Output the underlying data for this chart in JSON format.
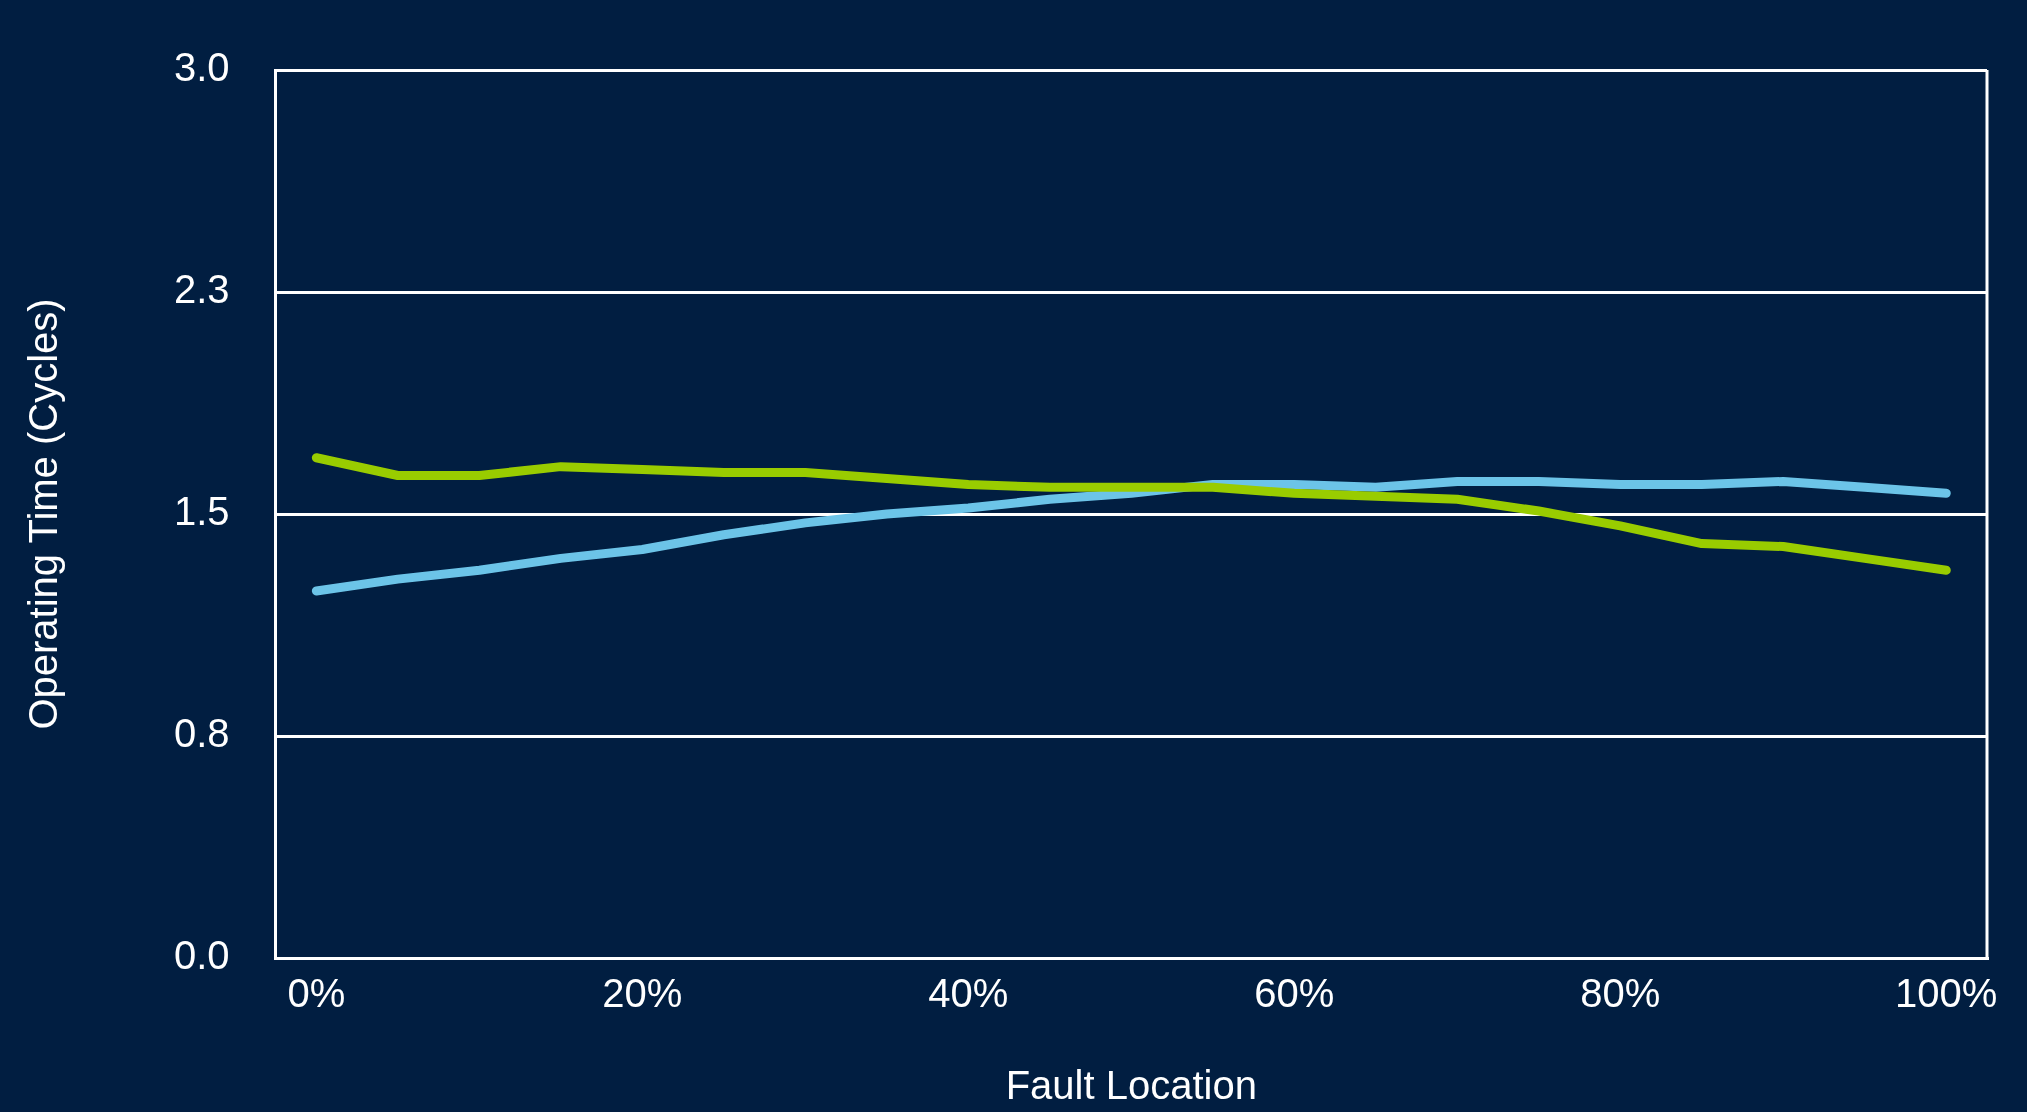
{
  "chart_data": {
    "type": "line",
    "xlabel": "Fault Location",
    "ylabel": "Operating Time (Cycles)",
    "x": [
      0,
      5,
      10,
      15,
      20,
      25,
      30,
      35,
      40,
      45,
      50,
      55,
      60,
      65,
      70,
      75,
      80,
      85,
      90,
      95,
      100
    ],
    "series": [
      {
        "color": "#99cc00",
        "values": [
          1.69,
          1.63,
          1.63,
          1.66,
          1.65,
          1.64,
          1.64,
          1.62,
          1.6,
          1.59,
          1.59,
          1.59,
          1.57,
          1.56,
          1.55,
          1.51,
          1.46,
          1.4,
          1.39,
          1.35,
          1.31
        ]
      },
      {
        "color": "#6cc4e8",
        "values": [
          1.24,
          1.28,
          1.31,
          1.35,
          1.38,
          1.43,
          1.47,
          1.5,
          1.52,
          1.55,
          1.57,
          1.6,
          1.6,
          1.59,
          1.61,
          1.61,
          1.6,
          1.6,
          1.61,
          1.59,
          1.57
        ]
      }
    ],
    "xlim": [
      -2.5,
      102.5
    ],
    "xticks": [
      {
        "value": 0,
        "label": "0%"
      },
      {
        "value": 20,
        "label": "20%"
      },
      {
        "value": 40,
        "label": "40%"
      },
      {
        "value": 60,
        "label": "60%"
      },
      {
        "value": 80,
        "label": "80%"
      },
      {
        "value": 100,
        "label": "100%"
      }
    ],
    "ylim": [
      0,
      3
    ],
    "yticks": [
      {
        "value": 0,
        "label": "0.0"
      },
      {
        "value": 0.75,
        "label": "0.8"
      },
      {
        "value": 1.5,
        "label": "1.5"
      },
      {
        "value": 2.25,
        "label": "2.3"
      },
      {
        "value": 3,
        "label": "3.0"
      }
    ],
    "grid": "y",
    "legend": false,
    "marker": "none",
    "line_style": "solid"
  }
}
